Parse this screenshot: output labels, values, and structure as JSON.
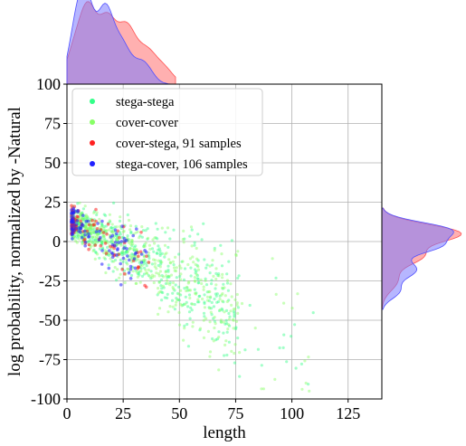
{
  "chart_data": {
    "type": "scatter",
    "xlabel": "length",
    "ylabel": "log probability, normalized by -Natural",
    "xlim": [
      0,
      140
    ],
    "ylim": [
      -100,
      100
    ],
    "xticks": [
      0,
      25,
      50,
      75,
      100,
      125
    ],
    "yticks": [
      -100,
      -75,
      -50,
      -25,
      0,
      25,
      50,
      75,
      100
    ],
    "grid": true,
    "legend_position": "top-left",
    "marginals": "kernel density estimates above (length) and right (log probability)",
    "series": [
      {
        "name": "stega-stega",
        "color": "#33ff88",
        "count": 520
      },
      {
        "name": "cover-cover",
        "color": "#88ff66",
        "count": 520
      },
      {
        "name": "cover-stega, 91 samples",
        "color": "#ff2020",
        "count": 91
      },
      {
        "name": "stega-cover, 106 samples",
        "color": "#2020ff",
        "count": 106
      }
    ],
    "marginal_series": [
      {
        "name": "cover-stega",
        "color": "#ff7070"
      },
      {
        "name": "stega-cover",
        "color": "#7a7aff"
      }
    ]
  }
}
